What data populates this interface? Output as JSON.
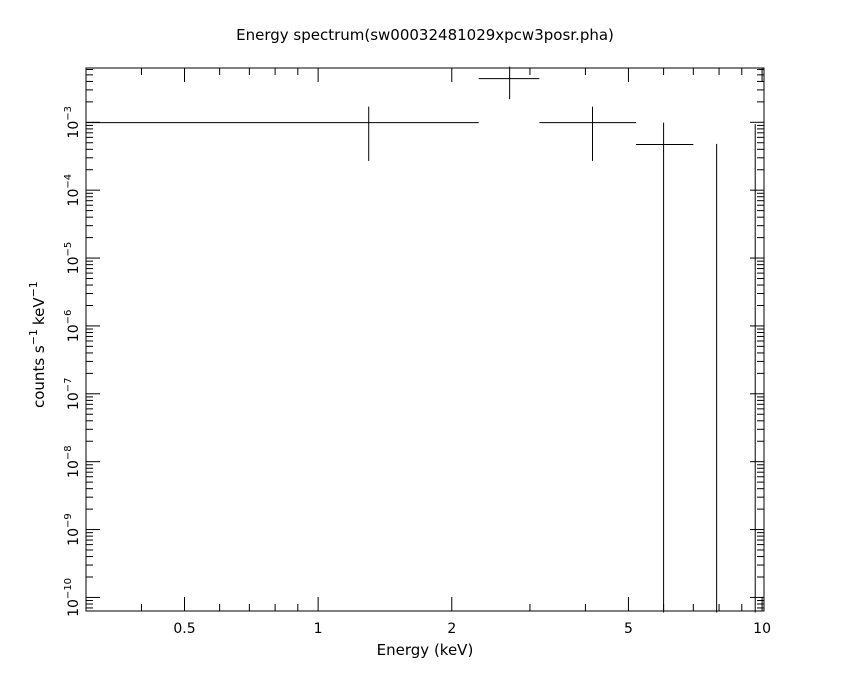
{
  "chart_data": {
    "type": "scatter",
    "title": "Energy spectrum(sw00032481029xpcw3posr.pha)",
    "xlabel": "Energy (keV)",
    "ylabel": "counts s",
    "ylabel_sup1": "−1",
    "ylabel_unit": "keV",
    "ylabel_sup2": "−1",
    "x_scale": "log",
    "y_scale": "log",
    "xlim": [
      0.3,
      10.1
    ],
    "ylim_exponents": [
      -10.2,
      -2.2
    ],
    "xticks_major": [
      {
        "value": 0.5,
        "label": "0.5"
      },
      {
        "value": 1,
        "label": "1"
      },
      {
        "value": 2,
        "label": "2"
      },
      {
        "value": 5,
        "label": "5"
      },
      {
        "value": 10,
        "label": "10"
      }
    ],
    "xticks_minor": [
      0.3,
      0.4,
      0.6,
      0.7,
      0.8,
      0.9,
      3,
      4,
      6,
      7,
      8,
      9
    ],
    "yticks": [
      {
        "exp": -3,
        "base": "10",
        "sup": "−3"
      },
      {
        "exp": -4,
        "base": "10",
        "sup": "−4"
      },
      {
        "exp": -5,
        "base": "10",
        "sup": "−5"
      },
      {
        "exp": -6,
        "base": "10",
        "sup": "−6"
      },
      {
        "exp": -7,
        "base": "10",
        "sup": "−7"
      },
      {
        "exp": -8,
        "base": "10",
        "sup": "−8"
      },
      {
        "exp": -9,
        "base": "10",
        "sup": "−9"
      },
      {
        "exp": -10,
        "base": "10",
        "sup": "−10"
      }
    ],
    "points": [
      {
        "x": 1.3,
        "xlo": 0.3,
        "xhi": 2.3,
        "y": 0.00099,
        "ylo": 0.00027,
        "yhi": 0.0017
      },
      {
        "x": 2.7,
        "xlo": 2.3,
        "xhi": 3.15,
        "y": 0.0044,
        "ylo": 0.0022,
        "yhi": 0.0066
      },
      {
        "x": 4.15,
        "xlo": 3.15,
        "xhi": 5.2,
        "y": 0.00099,
        "ylo": 0.00027,
        "yhi": 0.0017
      },
      {
        "x": 6.0,
        "xlo": 5.2,
        "xhi": 7.0,
        "y": 0.00047,
        "ylo": 6e-11,
        "yhi": 0.00099
      },
      {
        "x": 7.9,
        "xlo": 7.9,
        "xhi": 7.9,
        "y": 0.00048,
        "ylo": 6e-11,
        "yhi": 0.00048
      },
      {
        "x": 9.65,
        "xlo": 9.65,
        "xhi": 9.65,
        "y": 0.00094,
        "ylo": 6e-11,
        "yhi": 0.00094
      }
    ],
    "grid": false,
    "legend": "none"
  }
}
